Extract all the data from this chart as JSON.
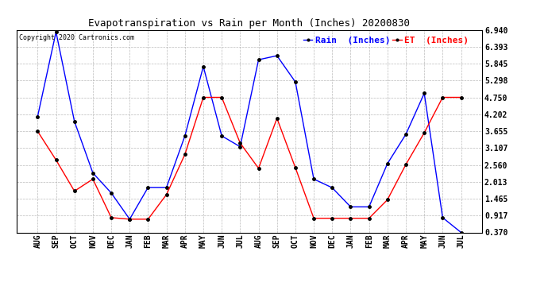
{
  "title": "Evapotranspiration vs Rain per Month (Inches) 20200830",
  "copyright": "Copyright 2020 Cartronics.com",
  "x_labels": [
    "AUG",
    "SEP",
    "OCT",
    "NOV",
    "DEC",
    "JAN",
    "FEB",
    "MAR",
    "APR",
    "MAY",
    "JUN",
    "JUL",
    "AUG",
    "SEP",
    "OCT",
    "NOV",
    "DEC",
    "JAN",
    "FEB",
    "MAR",
    "APR",
    "MAY",
    "JUN",
    "JUL"
  ],
  "rain_values": [
    4.13,
    6.87,
    3.97,
    2.3,
    1.65,
    0.8,
    1.83,
    1.83,
    3.5,
    5.75,
    3.5,
    3.15,
    5.97,
    6.1,
    5.25,
    2.1,
    1.82,
    1.2,
    1.2,
    2.6,
    3.55,
    4.88,
    0.85,
    0.37
  ],
  "et_values": [
    3.65,
    2.72,
    1.71,
    2.1,
    0.85,
    0.8,
    0.8,
    1.6,
    2.9,
    4.75,
    4.75,
    3.27,
    2.45,
    4.07,
    2.47,
    0.83,
    0.83,
    0.83,
    0.83,
    1.43,
    2.57,
    3.6,
    4.75,
    4.75
  ],
  "rain_color": "blue",
  "et_color": "red",
  "ylim": [
    0.37,
    6.94
  ],
  "yticks": [
    0.37,
    0.917,
    1.465,
    2.013,
    2.56,
    3.107,
    3.655,
    4.202,
    4.75,
    5.298,
    5.845,
    6.393,
    6.94
  ],
  "legend_rain": "Rain  (Inches)",
  "legend_et": "ET  (Inches)",
  "background_color": "#ffffff",
  "grid_color": "#aaaaaa",
  "fig_width": 6.9,
  "fig_height": 3.75,
  "title_fontsize": 9,
  "tick_fontsize": 7,
  "legend_fontsize": 8
}
